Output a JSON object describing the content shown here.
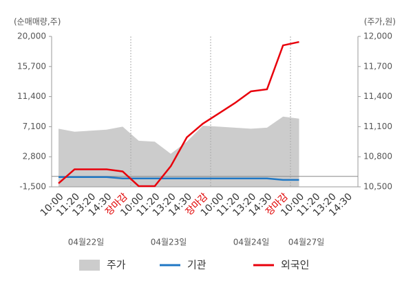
{
  "chart_data": {
    "type": "line",
    "y_label": "(순매매량,주)",
    "y2_label": "(주가,원)",
    "categories": [
      "10:00",
      "11:20",
      "13:20",
      "14:30",
      "장마감",
      "10:00",
      "11:20",
      "13:20",
      "14:30",
      "장마감",
      "10:00",
      "11:20",
      "13:20",
      "14:30",
      "장마감",
      "10:00",
      "11:20",
      "13:20",
      "14:30"
    ],
    "highlight_category": "장마감",
    "highlight_color": "#e00000",
    "date_labels": [
      "04월22일",
      "04월23일",
      "04월24일",
      "04월27일"
    ],
    "ylim": [
      -1500,
      20000
    ],
    "yticks": [
      {
        "value": -1500,
        "label": "-1,500"
      },
      {
        "value": 2800,
        "label": "2,800"
      },
      {
        "value": 7100,
        "label": "7,100"
      },
      {
        "value": 11400,
        "label": "11,400"
      },
      {
        "value": 15700,
        "label": "15,700"
      },
      {
        "value": 20000,
        "label": "20,000"
      }
    ],
    "y2lim": [
      10500,
      12000
    ],
    "y2ticks": [
      {
        "value": 10500,
        "label": "10,500"
      },
      {
        "value": 10800,
        "label": "10,800"
      },
      {
        "value": 11100,
        "label": "11,100"
      },
      {
        "value": 11400,
        "label": "11,400"
      },
      {
        "value": 11700,
        "label": "11,700"
      },
      {
        "value": 12000,
        "label": "12,000"
      }
    ],
    "series": [
      {
        "name": "주가",
        "type": "area",
        "axis": "y2",
        "color": "#cccccc",
        "values": [
          11080,
          11050,
          11060,
          11070,
          11100,
          10960,
          10950,
          10830,
          10950,
          11110,
          11100,
          11090,
          11080,
          11090,
          11200,
          11180,
          null,
          null,
          null
        ]
      },
      {
        "name": "기관",
        "type": "line",
        "color": "#1f77c4",
        "values": [
          -100,
          -100,
          -100,
          -100,
          -300,
          -300,
          -300,
          -300,
          -300,
          -300,
          -300,
          -300,
          -300,
          -300,
          -500,
          -500,
          null,
          null,
          null
        ]
      },
      {
        "name": "외국인",
        "type": "line",
        "color": "#e8000b",
        "values": [
          -1000,
          1000,
          1000,
          1000,
          700,
          -1400,
          -1400,
          1450,
          5570,
          7530,
          9000,
          10480,
          12150,
          12440,
          18720,
          19210,
          null,
          null,
          null
        ]
      }
    ]
  }
}
